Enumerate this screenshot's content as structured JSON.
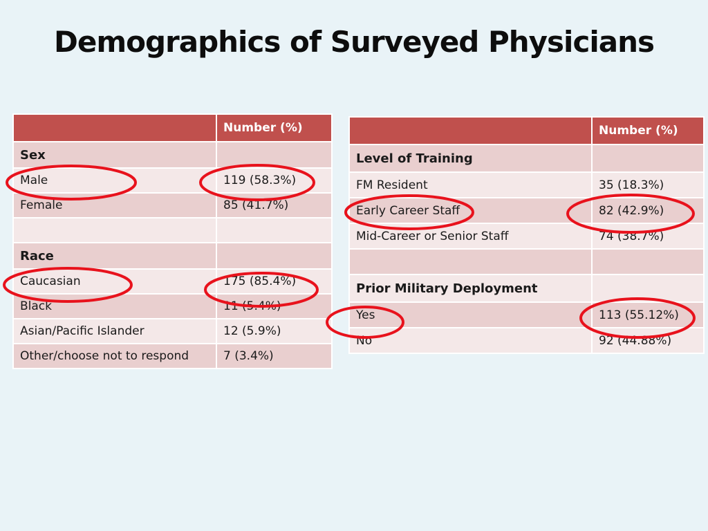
{
  "title": "Demographics of Surveyed Physicians",
  "left_table": {
    "header": [
      "",
      "Number (%)"
    ],
    "rows": [
      {
        "label": "Sex",
        "value": "",
        "section": true
      },
      {
        "label": "Male",
        "value": "119 (58.3%)",
        "circled": true
      },
      {
        "label": "Female",
        "value": "85 (41.7%)"
      },
      {
        "label": "",
        "value": ""
      },
      {
        "label": "Race",
        "value": "",
        "section": true
      },
      {
        "label": "Caucasian",
        "value": "175 (85.4%)",
        "circled": true
      },
      {
        "label": "Black",
        "value": "11 (5.4%)"
      },
      {
        "label": "Asian/Pacific Islander",
        "value": "12 (5.9%)"
      },
      {
        "label": "Other/choose not to respond",
        "value": "7 (3.4%)"
      }
    ]
  },
  "right_table": {
    "header": [
      "",
      "Number (%)"
    ],
    "rows": [
      {
        "label": "Level of Training",
        "value": "",
        "section": true
      },
      {
        "label": "FM Resident",
        "value": "35 (18.3%)"
      },
      {
        "label": "Early Career Staff",
        "value": "82 (42.9%)",
        "circled": true
      },
      {
        "label": "Mid-Career or Senior Staff",
        "value": "74 (38.7%)"
      },
      {
        "label": "",
        "value": ""
      },
      {
        "label": "Prior Military Deployment",
        "value": "",
        "section": true
      },
      {
        "label": "Yes",
        "value": "113 (55.12%)",
        "circled": true
      },
      {
        "label": "No",
        "value": "92 (44.88%)"
      }
    ]
  },
  "colors": {
    "background": "#e9f3f7",
    "header": "#c0504d",
    "row_dark": "#e9cfcf",
    "row_light": "#f4e8e8",
    "annotation": "#e8121c"
  }
}
